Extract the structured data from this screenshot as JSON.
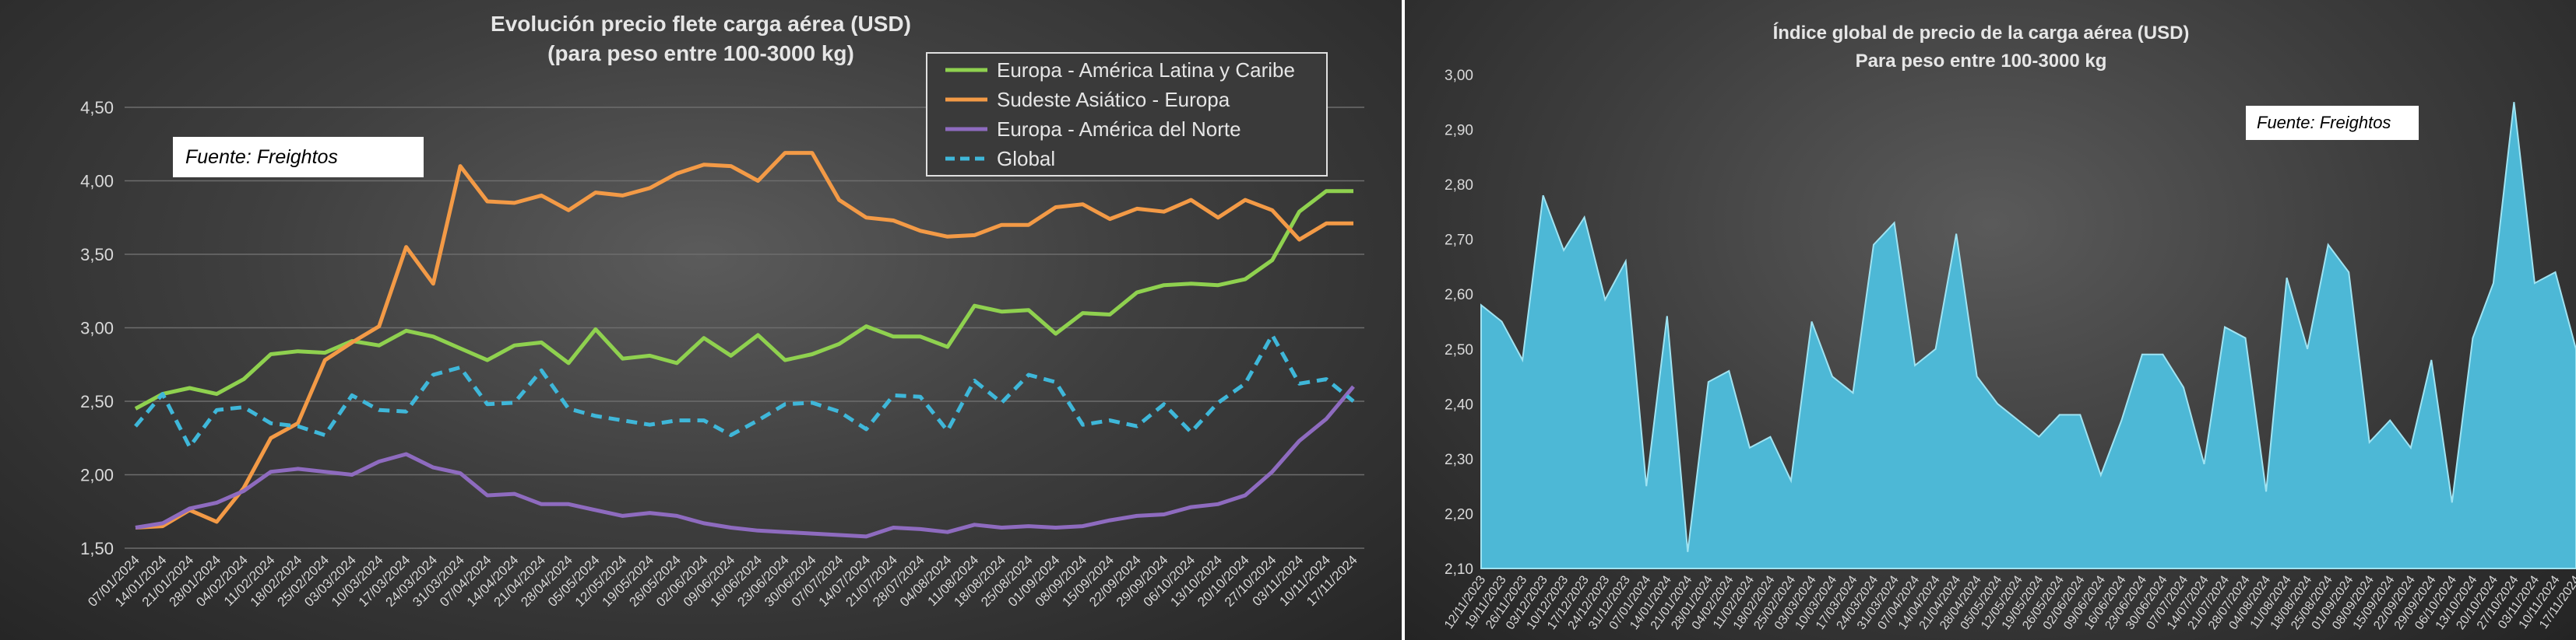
{
  "chart_data": [
    {
      "type": "line",
      "title": "Evolución precio flete carga  aérea (USD)",
      "subtitle": "(para peso entre 100-3000  kg)",
      "source": "Fuente: Freightos",
      "ylim": [
        1.5,
        4.5
      ],
      "yticks": [
        "1,50",
        "2,00",
        "2,50",
        "3,00",
        "3,50",
        "4,00",
        "4,50"
      ],
      "xlabels": [
        "07/01/2024",
        "14/01/2024",
        "21/01/2024",
        "28/01/2024",
        "04/02/2024",
        "11/02/2024",
        "18/02/2024",
        "25/02/2024",
        "03/03/2024",
        "10/03/2024",
        "17/03/2024",
        "24/03/2024",
        "31/03/2024",
        "07/04/2024",
        "14/04/2024",
        "21/04/2024",
        "28/04/2024",
        "05/05/2024",
        "12/05/2024",
        "19/05/2024",
        "26/05/2024",
        "02/06/2024",
        "09/06/2024",
        "16/06/2024",
        "23/06/2024",
        "30/06/2024",
        "07/07/2024",
        "14/07/2024",
        "21/07/2024",
        "28/07/2024",
        "04/08/2024",
        "11/08/2024",
        "18/08/2024",
        "25/08/2024",
        "01/09/2024",
        "08/09/2024",
        "15/09/2024",
        "22/09/2024",
        "29/09/2024",
        "06/10/2024",
        "13/10/2024",
        "20/10/2024",
        "27/10/2024",
        "03/11/2024",
        "10/11/2024",
        "17/11/2024"
      ],
      "legend_position": "top-right",
      "grid": true,
      "series": [
        {
          "name": "Europa - América Latina y Caribe",
          "color": "#8fd14f",
          "dashed": false,
          "values": [
            2.45,
            2.55,
            2.59,
            2.55,
            2.65,
            2.82,
            2.84,
            2.83,
            2.91,
            2.88,
            2.98,
            2.94,
            2.86,
            2.78,
            2.88,
            2.9,
            2.76,
            2.99,
            2.79,
            2.81,
            2.76,
            2.93,
            2.81,
            2.95,
            2.78,
            2.82,
            2.89,
            3.01,
            2.94,
            2.94,
            2.87,
            3.15,
            3.11,
            3.12,
            2.96,
            3.1,
            3.09,
            3.24,
            3.29,
            3.3,
            3.29,
            3.33,
            3.46,
            3.79,
            3.93,
            3.93
          ]
        },
        {
          "name": "Sudeste Asiático - Europa",
          "color": "#f39a46",
          "dashed": false,
          "values": [
            1.64,
            1.65,
            1.76,
            1.68,
            1.91,
            2.25,
            2.35,
            2.78,
            2.9,
            3.01,
            3.55,
            3.3,
            4.1,
            3.86,
            3.85,
            3.9,
            3.8,
            3.92,
            3.9,
            3.95,
            4.05,
            4.11,
            4.1,
            4.0,
            4.19,
            4.19,
            3.87,
            3.75,
            3.73,
            3.66,
            3.62,
            3.63,
            3.7,
            3.7,
            3.82,
            3.84,
            3.74,
            3.81,
            3.79,
            3.87,
            3.75,
            3.87,
            3.8,
            3.6,
            3.71,
            3.71
          ]
        },
        {
          "name": "Europa - América del Norte",
          "color": "#8e6bbf",
          "dashed": false,
          "values": [
            1.64,
            1.67,
            1.77,
            1.81,
            1.89,
            2.02,
            2.04,
            2.02,
            2.0,
            2.09,
            2.14,
            2.05,
            2.01,
            1.86,
            1.87,
            1.8,
            1.8,
            1.76,
            1.72,
            1.74,
            1.72,
            1.67,
            1.64,
            1.62,
            1.61,
            1.6,
            1.59,
            1.58,
            1.64,
            1.63,
            1.61,
            1.66,
            1.64,
            1.65,
            1.64,
            1.65,
            1.69,
            1.72,
            1.73,
            1.78,
            1.8,
            1.86,
            2.02,
            2.23,
            2.38,
            2.6
          ]
        },
        {
          "name": "Global",
          "color": "#3fb7d9",
          "dashed": true,
          "values": [
            2.33,
            2.55,
            2.19,
            2.44,
            2.46,
            2.35,
            2.33,
            2.27,
            2.54,
            2.44,
            2.43,
            2.68,
            2.73,
            2.48,
            2.49,
            2.71,
            2.45,
            2.4,
            2.37,
            2.34,
            2.37,
            2.37,
            2.27,
            2.37,
            2.48,
            2.49,
            2.43,
            2.31,
            2.54,
            2.53,
            2.3,
            2.64,
            2.49,
            2.68,
            2.63,
            2.34,
            2.37,
            2.33,
            2.48,
            2.29,
            2.49,
            2.62,
            2.95,
            2.62,
            2.65,
            2.5
          ]
        }
      ]
    },
    {
      "type": "area",
      "title": "Índice global de precio de la carga aérea (USD)",
      "subtitle": "Para peso entre 100-3000 kg",
      "source": "Fuente: Freightos",
      "ylim": [
        2.1,
        3.0
      ],
      "yticks": [
        "2,10",
        "2,20",
        "2,30",
        "2,40",
        "2,50",
        "2,60",
        "2,70",
        "2,80",
        "2,90",
        "3,00"
      ],
      "grid": false,
      "color": "#4db8d6",
      "xlabels": [
        "12/11/2023",
        "19/11/2023",
        "26/11/2023",
        "03/12/2023",
        "10/12/2023",
        "17/12/2023",
        "24/12/2023",
        "31/12/2023",
        "07/01/2024",
        "14/01/2024",
        "21/01/2024",
        "28/01/2024",
        "04/02/2024",
        "11/02/2024",
        "18/02/2024",
        "25/02/2024",
        "03/03/2024",
        "10/03/2024",
        "17/03/2024",
        "24/03/2024",
        "31/03/2024",
        "07/04/2024",
        "14/04/2024",
        "21/04/2024",
        "28/04/2024",
        "05/05/2024",
        "12/05/2024",
        "19/05/2024",
        "26/05/2024",
        "02/06/2024",
        "09/06/2024",
        "16/06/2024",
        "23/06/2024",
        "30/06/2024",
        "07/07/2024",
        "14/07/2024",
        "21/07/2024",
        "28/07/2024",
        "04/08/2024",
        "11/08/2024",
        "18/08/2024",
        "25/08/2024",
        "01/09/2024",
        "08/09/2024",
        "15/09/2024",
        "22/09/2024",
        "29/09/2024",
        "06/10/2024",
        "13/10/2024",
        "20/10/2024",
        "27/10/2024",
        "03/11/2024",
        "10/11/2024",
        "17/11/2024"
      ],
      "values": [
        2.58,
        2.55,
        2.48,
        2.78,
        2.68,
        2.74,
        2.59,
        2.66,
        2.25,
        2.56,
        2.13,
        2.44,
        2.46,
        2.32,
        2.34,
        2.26,
        2.55,
        2.45,
        2.42,
        2.69,
        2.73,
        2.47,
        2.5,
        2.71,
        2.45,
        2.4,
        2.37,
        2.34,
        2.38,
        2.38,
        2.27,
        2.37,
        2.49,
        2.49,
        2.43,
        2.29,
        2.54,
        2.52,
        2.24,
        2.63,
        2.5,
        2.69,
        2.64,
        2.33,
        2.37,
        2.32,
        2.48,
        2.22,
        2.52,
        2.62,
        2.95,
        2.62,
        2.64,
        2.5
      ]
    }
  ]
}
